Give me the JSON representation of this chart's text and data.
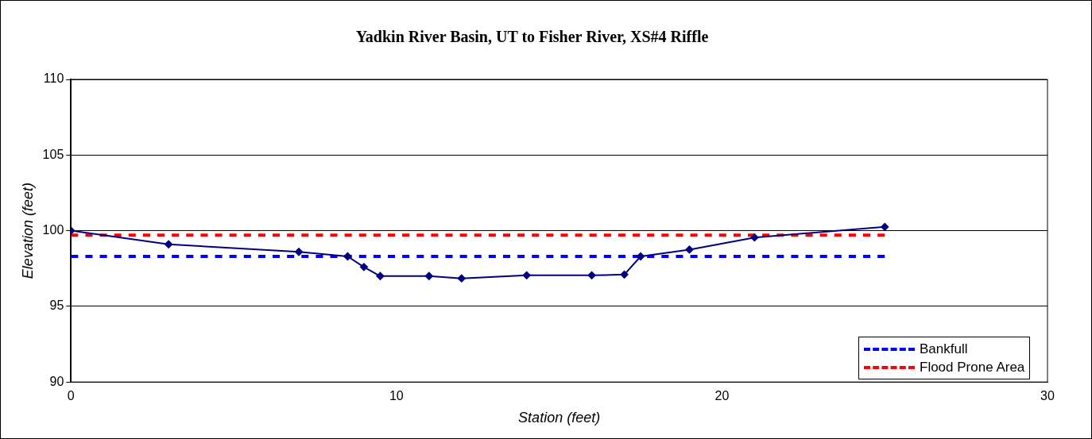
{
  "chart_data": {
    "type": "line",
    "title": "Yadkin River Basin, UT to Fisher River, XS#4 Riffle",
    "xlabel": "Station (feet)",
    "ylabel": "Elevation (feet)",
    "xlim": [
      0,
      30
    ],
    "xticks": [
      0,
      10,
      20,
      30
    ],
    "ylim": [
      90,
      110
    ],
    "yticks": [
      90,
      95,
      100,
      105,
      110
    ],
    "grid": "y",
    "legend": "bottom right",
    "series": [
      {
        "color": "#000080",
        "marker": "diamond",
        "line_style": "solid",
        "x": [
          0,
          3,
          7,
          8.5,
          9,
          9.5,
          11,
          12,
          14,
          16,
          17,
          17.5,
          19,
          21,
          25
        ],
        "values": [
          100.0,
          99.1,
          98.6,
          98.3,
          97.6,
          97.0,
          97.0,
          96.85,
          97.05,
          97.05,
          97.1,
          98.3,
          98.75,
          99.55,
          100.25
        ]
      },
      {
        "name": "Bankfull",
        "color": "#0000ff",
        "marker": "none",
        "line_style": "dashed",
        "x": [
          0,
          25
        ],
        "values": [
          98.3,
          98.3
        ]
      },
      {
        "name": "Flood Prone Area",
        "color": "#ff0000",
        "marker": "none",
        "line_style": "dashed",
        "x": [
          0,
          25
        ],
        "values": [
          99.7,
          99.7
        ]
      }
    ]
  }
}
